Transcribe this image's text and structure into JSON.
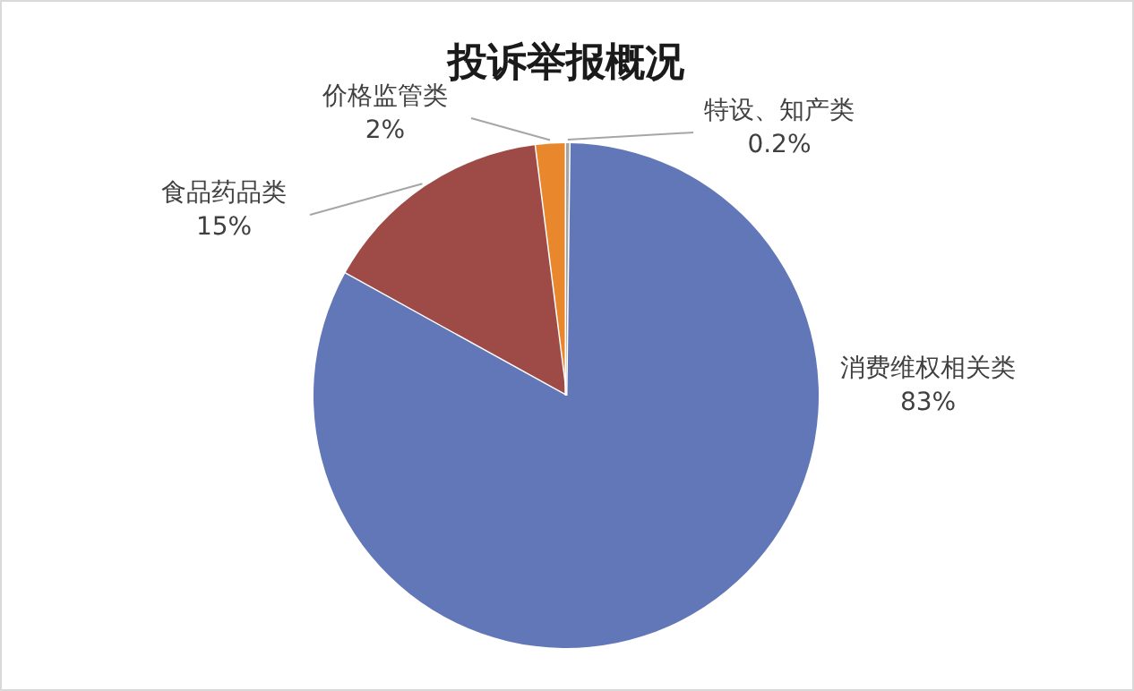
{
  "chart_data": {
    "type": "pie",
    "title": "投诉举报概况",
    "categories": [
      "特设、知产类",
      "消费维权相关类",
      "食品药品类",
      "价格监管类"
    ],
    "values": [
      0.2,
      83,
      15,
      2
    ],
    "colors": [
      "#a5a5a5",
      "#6277b8",
      "#9e4b48",
      "#e8872b"
    ],
    "value_labels": [
      "0.2%",
      "83%",
      "15%",
      "2%"
    ]
  }
}
